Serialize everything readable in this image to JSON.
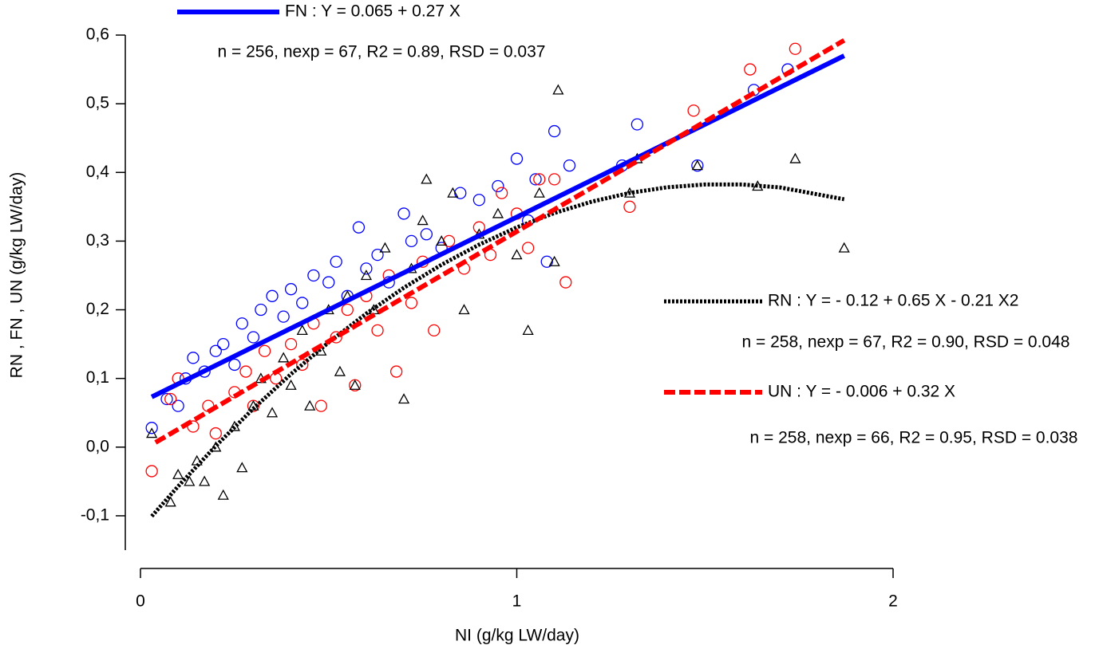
{
  "chart_data": {
    "type": "scatter",
    "xlabel": "NI (g/kg LW/day)",
    "ylabel": "RN , FN , UN  (g/kg LW/day)",
    "xlim": [
      0,
      2
    ],
    "ylim": [
      -0.15,
      0.6
    ],
    "xticks": [
      0,
      1,
      2
    ],
    "yticks": [
      {
        "value": -0.1,
        "label": "-0,1"
      },
      {
        "value": 0,
        "label": "0,0"
      },
      {
        "value": 0.1,
        "label": "0,1"
      },
      {
        "value": 0.2,
        "label": "0,2"
      },
      {
        "value": 0.3,
        "label": "0,3"
      },
      {
        "value": 0.4,
        "label": "0,4"
      },
      {
        "value": 0.5,
        "label": "0,5"
      },
      {
        "value": 0.6,
        "label": "0,6"
      }
    ],
    "series": [
      {
        "color": "#0000ff",
        "marker": "circle",
        "x": [
          0.03,
          0.07,
          0.1,
          0.12,
          0.14,
          0.17,
          0.2,
          0.22,
          0.25,
          0.27,
          0.3,
          0.32,
          0.35,
          0.38,
          0.4,
          0.43,
          0.46,
          0.5,
          0.52,
          0.55,
          0.58,
          0.6,
          0.63,
          0.66,
          0.7,
          0.72,
          0.76,
          0.8,
          0.85,
          0.9,
          0.95,
          1.0,
          1.03,
          1.05,
          1.08,
          1.1,
          1.14,
          1.28,
          1.32,
          1.48,
          1.63,
          1.72
        ],
        "values": [
          0.028,
          0.07,
          0.06,
          0.1,
          0.13,
          0.11,
          0.14,
          0.15,
          0.12,
          0.18,
          0.16,
          0.2,
          0.22,
          0.19,
          0.23,
          0.21,
          0.25,
          0.24,
          0.27,
          0.22,
          0.32,
          0.26,
          0.28,
          0.24,
          0.34,
          0.3,
          0.31,
          0.29,
          0.37,
          0.36,
          0.38,
          0.42,
          0.33,
          0.39,
          0.27,
          0.46,
          0.41,
          0.41,
          0.47,
          0.41,
          0.52,
          0.55
        ]
      },
      {
        "color": "#ff0000",
        "marker": "circle",
        "x": [
          0.03,
          0.08,
          0.1,
          0.14,
          0.18,
          0.2,
          0.25,
          0.28,
          0.3,
          0.33,
          0.36,
          0.4,
          0.43,
          0.46,
          0.48,
          0.52,
          0.55,
          0.57,
          0.6,
          0.63,
          0.66,
          0.68,
          0.72,
          0.75,
          0.78,
          0.82,
          0.86,
          0.9,
          0.93,
          0.96,
          1.0,
          1.03,
          1.06,
          1.1,
          1.13,
          1.3,
          1.47,
          1.62,
          1.74
        ],
        "values": [
          -0.035,
          0.07,
          0.1,
          0.03,
          0.06,
          0.02,
          0.08,
          0.11,
          0.06,
          0.14,
          0.1,
          0.15,
          0.12,
          0.18,
          0.06,
          0.16,
          0.2,
          0.09,
          0.22,
          0.17,
          0.25,
          0.11,
          0.21,
          0.27,
          0.17,
          0.3,
          0.26,
          0.32,
          0.28,
          0.37,
          0.34,
          0.29,
          0.39,
          0.39,
          0.24,
          0.35,
          0.49,
          0.55,
          0.58
        ]
      },
      {
        "color": "#000000",
        "marker": "triangle",
        "x": [
          0.03,
          0.08,
          0.1,
          0.13,
          0.15,
          0.17,
          0.2,
          0.22,
          0.25,
          0.27,
          0.3,
          0.32,
          0.35,
          0.38,
          0.4,
          0.43,
          0.45,
          0.48,
          0.5,
          0.53,
          0.55,
          0.57,
          0.6,
          0.62,
          0.65,
          0.7,
          0.72,
          0.75,
          0.76,
          0.8,
          0.83,
          0.86,
          0.9,
          0.95,
          1.0,
          1.03,
          1.06,
          1.1,
          1.11,
          1.3,
          1.32,
          1.48,
          1.64,
          1.74,
          1.87
        ],
        "values": [
          0.02,
          -0.08,
          -0.04,
          -0.05,
          -0.02,
          -0.05,
          0.0,
          -0.07,
          0.03,
          -0.03,
          0.06,
          0.1,
          0.05,
          0.13,
          0.09,
          0.17,
          0.06,
          0.14,
          0.2,
          0.11,
          0.22,
          0.09,
          0.25,
          0.2,
          0.29,
          0.07,
          0.26,
          0.33,
          0.39,
          0.3,
          0.37,
          0.2,
          0.31,
          0.34,
          0.28,
          0.17,
          0.37,
          0.27,
          0.52,
          0.37,
          0.42,
          0.41,
          0.38,
          0.42,
          0.29
        ]
      }
    ],
    "fits": [
      {
        "name": "FN : Y = 0.065 + 0.27 X",
        "stats": "n = 256, nexp = 67, R2 = 0.89, RSD = 0.037",
        "color": "#0000ff",
        "dash": "solid",
        "x": [
          0.03,
          1.87
        ],
        "values": [
          0.0731,
          0.5699
        ]
      },
      {
        "name": "RN : Y = - 0.12 + 0.65 X - 0.21 X2",
        "stats": "n = 258, nexp = 67, R2 = 0.90, RSD = 0.048",
        "color": "#000000",
        "dash": "dotted",
        "x": [
          0.03,
          0.1,
          0.2,
          0.3,
          0.4,
          0.5,
          0.6,
          0.7,
          0.8,
          0.9,
          1.0,
          1.1,
          1.2,
          1.3,
          1.4,
          1.5,
          1.6,
          1.7,
          1.87
        ],
        "values": [
          -0.1007,
          -0.0571,
          0.0016,
          0.0561,
          0.1064,
          0.1525,
          0.1944,
          0.2321,
          0.2656,
          0.2949,
          0.32,
          0.3409,
          0.3576,
          0.3701,
          0.3784,
          0.3825,
          0.3824,
          0.3781,
          0.3609
        ]
      },
      {
        "name": "UN : Y = - 0.006 + 0.32 X",
        "stats": "n = 258, nexp = 66, R2 = 0.95, RSD = 0.038",
        "color": "#ff0000",
        "dash": "dashed",
        "x": [
          0.04,
          1.87
        ],
        "values": [
          0.0068,
          0.5924
        ]
      }
    ]
  }
}
